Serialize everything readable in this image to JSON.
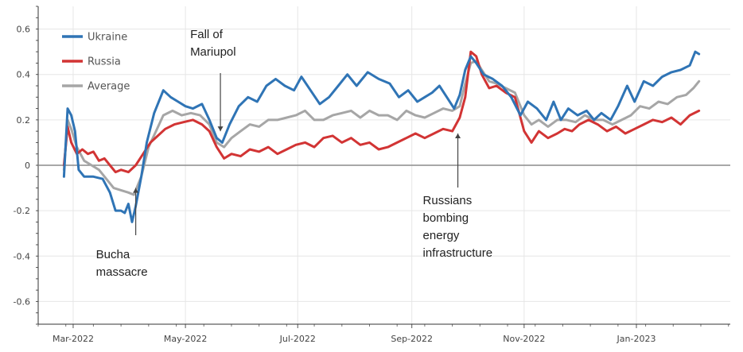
{
  "chart_data": {
    "type": "line",
    "title": "",
    "xlabel": "",
    "ylabel": "",
    "ylim": [
      -0.7,
      0.7
    ],
    "xlim": [
      "2022-02-10",
      "2023-02-21"
    ],
    "grid": true,
    "legend_position": "top-left",
    "y_ticks": [
      -0.6,
      -0.4,
      -0.2,
      0,
      0.2,
      0.4,
      0.6
    ],
    "y_tick_labels": [
      "-0.6",
      "-0.4",
      "-0.2",
      "0",
      "0.2",
      "0.4",
      "0.6"
    ],
    "x_ticks": [
      "2022-03-01",
      "2022-05-01",
      "2022-07-01",
      "2022-09-01",
      "2022-11-01",
      "2023-01-01"
    ],
    "x_tick_labels": [
      "Mar-2022",
      "May-2022",
      "Jul-2022",
      "Sep-2022",
      "Nov-2022",
      "Jan-2023"
    ],
    "series": [
      {
        "name": "Ukraine",
        "color": "#2f74b5",
        "points": [
          [
            "2022-02-24",
            -0.05
          ],
          [
            "2022-02-26",
            0.25
          ],
          [
            "2022-02-28",
            0.22
          ],
          [
            "2022-03-02",
            0.15
          ],
          [
            "2022-03-04",
            -0.02
          ],
          [
            "2022-03-07",
            -0.05
          ],
          [
            "2022-03-12",
            -0.05
          ],
          [
            "2022-03-17",
            -0.06
          ],
          [
            "2022-03-21",
            -0.12
          ],
          [
            "2022-03-24",
            -0.2
          ],
          [
            "2022-03-27",
            -0.2
          ],
          [
            "2022-03-29",
            -0.21
          ],
          [
            "2022-03-31",
            -0.17
          ],
          [
            "2022-04-02",
            -0.25
          ],
          [
            "2022-04-04",
            -0.18
          ],
          [
            "2022-04-07",
            -0.05
          ],
          [
            "2022-04-10",
            0.1
          ],
          [
            "2022-04-14",
            0.23
          ],
          [
            "2022-04-19",
            0.33
          ],
          [
            "2022-04-23",
            0.3
          ],
          [
            "2022-04-27",
            0.28
          ],
          [
            "2022-05-01",
            0.26
          ],
          [
            "2022-05-05",
            0.25
          ],
          [
            "2022-05-10",
            0.27
          ],
          [
            "2022-05-14",
            0.2
          ],
          [
            "2022-05-18",
            0.12
          ],
          [
            "2022-05-21",
            0.1
          ],
          [
            "2022-05-25",
            0.18
          ],
          [
            "2022-05-30",
            0.26
          ],
          [
            "2022-06-04",
            0.3
          ],
          [
            "2022-06-09",
            0.28
          ],
          [
            "2022-06-14",
            0.35
          ],
          [
            "2022-06-19",
            0.38
          ],
          [
            "2022-06-24",
            0.35
          ],
          [
            "2022-06-29",
            0.33
          ],
          [
            "2022-07-03",
            0.39
          ],
          [
            "2022-07-08",
            0.33
          ],
          [
            "2022-07-13",
            0.27
          ],
          [
            "2022-07-18",
            0.3
          ],
          [
            "2022-07-23",
            0.35
          ],
          [
            "2022-07-28",
            0.4
          ],
          [
            "2022-08-02",
            0.35
          ],
          [
            "2022-08-08",
            0.41
          ],
          [
            "2022-08-14",
            0.38
          ],
          [
            "2022-08-20",
            0.36
          ],
          [
            "2022-08-25",
            0.3
          ],
          [
            "2022-08-30",
            0.33
          ],
          [
            "2022-09-04",
            0.28
          ],
          [
            "2022-09-08",
            0.3
          ],
          [
            "2022-09-12",
            0.32
          ],
          [
            "2022-09-16",
            0.35
          ],
          [
            "2022-09-20",
            0.3
          ],
          [
            "2022-09-24",
            0.25
          ],
          [
            "2022-09-27",
            0.31
          ],
          [
            "2022-09-30",
            0.42
          ],
          [
            "2022-10-03",
            0.48
          ],
          [
            "2022-10-06",
            0.45
          ],
          [
            "2022-10-10",
            0.4
          ],
          [
            "2022-10-15",
            0.38
          ],
          [
            "2022-10-20",
            0.35
          ],
          [
            "2022-10-25",
            0.3
          ],
          [
            "2022-10-30",
            0.22
          ],
          [
            "2022-11-03",
            0.28
          ],
          [
            "2022-11-08",
            0.25
          ],
          [
            "2022-11-13",
            0.2
          ],
          [
            "2022-11-17",
            0.28
          ],
          [
            "2022-11-21",
            0.2
          ],
          [
            "2022-11-25",
            0.25
          ],
          [
            "2022-11-30",
            0.22
          ],
          [
            "2022-12-05",
            0.24
          ],
          [
            "2022-12-09",
            0.2
          ],
          [
            "2022-12-13",
            0.23
          ],
          [
            "2022-12-18",
            0.2
          ],
          [
            "2022-12-22",
            0.26
          ],
          [
            "2022-12-27",
            0.35
          ],
          [
            "2022-12-31",
            0.28
          ],
          [
            "2023-01-05",
            0.37
          ],
          [
            "2023-01-10",
            0.35
          ],
          [
            "2023-01-15",
            0.39
          ],
          [
            "2023-01-20",
            0.41
          ],
          [
            "2023-01-25",
            0.42
          ],
          [
            "2023-01-30",
            0.44
          ],
          [
            "2023-02-02",
            0.5
          ],
          [
            "2023-02-04",
            0.49
          ]
        ]
      },
      {
        "name": "Russia",
        "color": "#d23434",
        "points": [
          [
            "2022-02-24",
            0.0
          ],
          [
            "2022-02-26",
            0.17
          ],
          [
            "2022-02-28",
            0.1
          ],
          [
            "2022-03-03",
            0.05
          ],
          [
            "2022-03-06",
            0.07
          ],
          [
            "2022-03-09",
            0.05
          ],
          [
            "2022-03-12",
            0.06
          ],
          [
            "2022-03-15",
            0.02
          ],
          [
            "2022-03-18",
            0.03
          ],
          [
            "2022-03-21",
            0.0
          ],
          [
            "2022-03-24",
            -0.03
          ],
          [
            "2022-03-27",
            -0.02
          ],
          [
            "2022-03-31",
            -0.03
          ],
          [
            "2022-04-04",
            0.0
          ],
          [
            "2022-04-08",
            0.05
          ],
          [
            "2022-04-12",
            0.1
          ],
          [
            "2022-04-16",
            0.13
          ],
          [
            "2022-04-20",
            0.16
          ],
          [
            "2022-04-25",
            0.18
          ],
          [
            "2022-04-30",
            0.19
          ],
          [
            "2022-05-05",
            0.2
          ],
          [
            "2022-05-10",
            0.18
          ],
          [
            "2022-05-14",
            0.15
          ],
          [
            "2022-05-18",
            0.08
          ],
          [
            "2022-05-22",
            0.03
          ],
          [
            "2022-05-26",
            0.05
          ],
          [
            "2022-05-31",
            0.04
          ],
          [
            "2022-06-05",
            0.07
          ],
          [
            "2022-06-10",
            0.06
          ],
          [
            "2022-06-15",
            0.08
          ],
          [
            "2022-06-20",
            0.05
          ],
          [
            "2022-06-25",
            0.07
          ],
          [
            "2022-06-30",
            0.09
          ],
          [
            "2022-07-05",
            0.1
          ],
          [
            "2022-07-10",
            0.08
          ],
          [
            "2022-07-15",
            0.12
          ],
          [
            "2022-07-20",
            0.13
          ],
          [
            "2022-07-25",
            0.1
          ],
          [
            "2022-07-30",
            0.12
          ],
          [
            "2022-08-04",
            0.09
          ],
          [
            "2022-08-09",
            0.1
          ],
          [
            "2022-08-14",
            0.07
          ],
          [
            "2022-08-19",
            0.08
          ],
          [
            "2022-08-24",
            0.1
          ],
          [
            "2022-08-29",
            0.12
          ],
          [
            "2022-09-03",
            0.14
          ],
          [
            "2022-09-08",
            0.12
          ],
          [
            "2022-09-13",
            0.14
          ],
          [
            "2022-09-18",
            0.16
          ],
          [
            "2022-09-23",
            0.15
          ],
          [
            "2022-09-27",
            0.21
          ],
          [
            "2022-09-30",
            0.3
          ],
          [
            "2022-10-03",
            0.5
          ],
          [
            "2022-10-06",
            0.48
          ],
          [
            "2022-10-09",
            0.4
          ],
          [
            "2022-10-13",
            0.34
          ],
          [
            "2022-10-17",
            0.35
          ],
          [
            "2022-10-22",
            0.32
          ],
          [
            "2022-10-27",
            0.3
          ],
          [
            "2022-11-01",
            0.15
          ],
          [
            "2022-11-05",
            0.1
          ],
          [
            "2022-11-09",
            0.15
          ],
          [
            "2022-11-14",
            0.12
          ],
          [
            "2022-11-19",
            0.14
          ],
          [
            "2022-11-23",
            0.16
          ],
          [
            "2022-11-27",
            0.15
          ],
          [
            "2022-12-01",
            0.18
          ],
          [
            "2022-12-06",
            0.2
          ],
          [
            "2022-12-11",
            0.18
          ],
          [
            "2022-12-16",
            0.15
          ],
          [
            "2022-12-21",
            0.17
          ],
          [
            "2022-12-26",
            0.14
          ],
          [
            "2022-12-31",
            0.16
          ],
          [
            "2023-01-05",
            0.18
          ],
          [
            "2023-01-10",
            0.2
          ],
          [
            "2023-01-15",
            0.19
          ],
          [
            "2023-01-20",
            0.21
          ],
          [
            "2023-01-25",
            0.18
          ],
          [
            "2023-01-30",
            0.22
          ],
          [
            "2023-02-04",
            0.24
          ]
        ]
      },
      {
        "name": "Average",
        "color": "#a6a6a6",
        "points": [
          [
            "2022-02-24",
            -0.02
          ],
          [
            "2022-02-26",
            0.2
          ],
          [
            "2022-02-28",
            0.16
          ],
          [
            "2022-03-03",
            0.08
          ],
          [
            "2022-03-07",
            0.02
          ],
          [
            "2022-03-11",
            0.0
          ],
          [
            "2022-03-15",
            -0.02
          ],
          [
            "2022-03-19",
            -0.06
          ],
          [
            "2022-03-23",
            -0.1
          ],
          [
            "2022-03-27",
            -0.11
          ],
          [
            "2022-03-31",
            -0.12
          ],
          [
            "2022-04-03",
            -0.13
          ],
          [
            "2022-04-07",
            -0.05
          ],
          [
            "2022-04-11",
            0.08
          ],
          [
            "2022-04-15",
            0.15
          ],
          [
            "2022-04-19",
            0.22
          ],
          [
            "2022-04-24",
            0.24
          ],
          [
            "2022-04-29",
            0.22
          ],
          [
            "2022-05-04",
            0.23
          ],
          [
            "2022-05-09",
            0.22
          ],
          [
            "2022-05-14",
            0.18
          ],
          [
            "2022-05-18",
            0.1
          ],
          [
            "2022-05-22",
            0.08
          ],
          [
            "2022-05-26",
            0.12
          ],
          [
            "2022-05-31",
            0.15
          ],
          [
            "2022-06-05",
            0.18
          ],
          [
            "2022-06-10",
            0.17
          ],
          [
            "2022-06-15",
            0.2
          ],
          [
            "2022-06-20",
            0.2
          ],
          [
            "2022-06-25",
            0.21
          ],
          [
            "2022-06-30",
            0.22
          ],
          [
            "2022-07-05",
            0.24
          ],
          [
            "2022-07-10",
            0.2
          ],
          [
            "2022-07-15",
            0.2
          ],
          [
            "2022-07-20",
            0.22
          ],
          [
            "2022-07-25",
            0.23
          ],
          [
            "2022-07-30",
            0.24
          ],
          [
            "2022-08-04",
            0.21
          ],
          [
            "2022-08-09",
            0.24
          ],
          [
            "2022-08-14",
            0.22
          ],
          [
            "2022-08-19",
            0.22
          ],
          [
            "2022-08-24",
            0.2
          ],
          [
            "2022-08-29",
            0.24
          ],
          [
            "2022-09-03",
            0.22
          ],
          [
            "2022-09-08",
            0.21
          ],
          [
            "2022-09-13",
            0.23
          ],
          [
            "2022-09-18",
            0.25
          ],
          [
            "2022-09-23",
            0.24
          ],
          [
            "2022-09-27",
            0.26
          ],
          [
            "2022-09-30",
            0.36
          ],
          [
            "2022-10-03",
            0.45
          ],
          [
            "2022-10-06",
            0.46
          ],
          [
            "2022-10-09",
            0.42
          ],
          [
            "2022-10-13",
            0.37
          ],
          [
            "2022-10-17",
            0.36
          ],
          [
            "2022-10-22",
            0.34
          ],
          [
            "2022-10-27",
            0.32
          ],
          [
            "2022-11-01",
            0.22
          ],
          [
            "2022-11-05",
            0.18
          ],
          [
            "2022-11-09",
            0.2
          ],
          [
            "2022-11-14",
            0.17
          ],
          [
            "2022-11-19",
            0.2
          ],
          [
            "2022-11-24",
            0.2
          ],
          [
            "2022-11-29",
            0.19
          ],
          [
            "2022-12-04",
            0.22
          ],
          [
            "2022-12-09",
            0.2
          ],
          [
            "2022-12-14",
            0.2
          ],
          [
            "2022-12-19",
            0.18
          ],
          [
            "2022-12-24",
            0.2
          ],
          [
            "2022-12-29",
            0.22
          ],
          [
            "2023-01-03",
            0.26
          ],
          [
            "2023-01-08",
            0.25
          ],
          [
            "2023-01-13",
            0.28
          ],
          [
            "2023-01-18",
            0.27
          ],
          [
            "2023-01-23",
            0.3
          ],
          [
            "2023-01-28",
            0.31
          ],
          [
            "2023-02-01",
            0.34
          ],
          [
            "2023-02-04",
            0.37
          ]
        ]
      }
    ],
    "annotations": [
      {
        "lines": [
          "Fall of",
          "Mariupol"
        ],
        "x": "2022-05-20",
        "y": 0.15
      },
      {
        "lines": [
          "Bucha",
          "massacre"
        ],
        "x": "2022-04-04",
        "y": -0.1
      },
      {
        "lines": [
          "Russians",
          "bombing",
          "energy",
          "infrastructure"
        ],
        "x": "2022-09-26",
        "y": 0.14
      }
    ]
  }
}
